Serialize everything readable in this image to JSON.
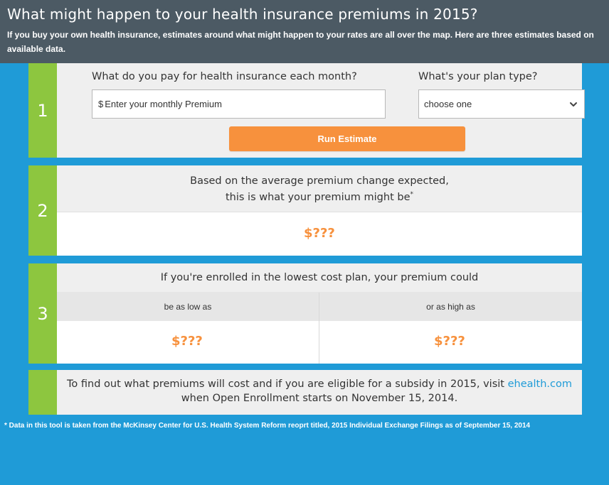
{
  "header": {
    "title": "What might happen to your health insurance premiums in 2015?",
    "subtitle": "If you buy your own health insurance, estimates around what might happen to your rates are all over the map. Here are three estimates based on available data."
  },
  "step1": {
    "number": "1",
    "premium_label": "What do you pay for health insurance each month?",
    "currency_symbol": "$",
    "premium_placeholder": "Enter your monthly Premium",
    "plan_label": "What's your plan type?",
    "plan_selected": "choose one",
    "run_button": "Run Estimate"
  },
  "step2": {
    "number": "2",
    "line1": "Based on the average premium change expected,",
    "line2": "this is what your premium might be",
    "asterisk": "*",
    "value": "$???"
  },
  "step3": {
    "number": "3",
    "heading": "If you're enrolled in the lowest cost plan, your premium could",
    "low_label": "be as low as",
    "high_label": "or as high as",
    "low_value": "$???",
    "high_value": "$???"
  },
  "step4": {
    "text_before": "To find out what premiums will cost and if you are eligible for a subsidy in 2015, visit",
    "link_text": "ehealth.com",
    "text_after": "when Open Enrollment starts on November 15, 2014."
  },
  "footnote": "* Data in this tool is taken from the McKinsey Center for U.S. Health System Reform reoprt titled, 2015 Individual Exchange Filings as of September 15, 2014",
  "colors": {
    "background": "#1f9bd7",
    "header": "#4c5a64",
    "number_bar": "#8dc63f",
    "accent": "#f7913d"
  },
  "icons": {
    "select_arrow": "chevron-down-icon"
  }
}
